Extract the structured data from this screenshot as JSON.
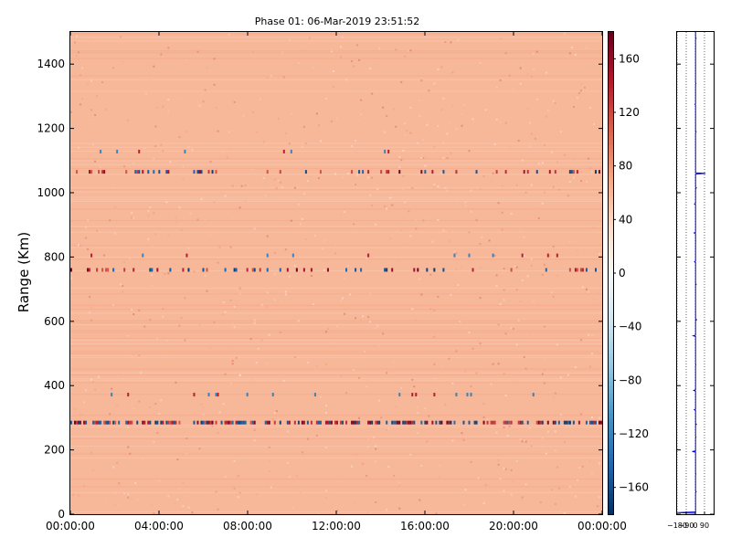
{
  "chart_data": [
    {
      "type": "heatmap",
      "title": "Phase 01: 06-Mar-2019 23:51:52",
      "ylabel": "Range (Km)",
      "xlabel": "",
      "x_ticks": [
        "00:00:00",
        "04:00:00",
        "08:00:00",
        "12:00:00",
        "16:00:00",
        "20:00:00",
        "00:00:00"
      ],
      "y_ticks": [
        0,
        200,
        400,
        600,
        800,
        1000,
        1200,
        1400
      ],
      "xlim_hours": [
        0,
        24
      ],
      "ylim": [
        0,
        1500
      ],
      "colorbar": {
        "colormap": "RdBu_r",
        "range": [
          -180,
          180
        ],
        "ticks": [
          160,
          120,
          80,
          40,
          0,
          -40,
          -80,
          -120,
          -160
        ],
        "labels": [
          "160",
          "120",
          "80",
          "40",
          "0",
          "−40",
          "−80",
          "−120",
          "−160"
        ]
      },
      "background_value": 60,
      "strong_rows": [
        {
          "range_km": 285,
          "style": "dense"
        },
        {
          "range_km": 760,
          "style": "sparse"
        },
        {
          "range_km": 1065,
          "style": "sparse"
        }
      ],
      "weak_rows": [
        372,
        805,
        1128
      ]
    },
    {
      "type": "line",
      "x_ticks": [
        -180,
        -90,
        0,
        90
      ],
      "x_tick_labels": [
        "−180",
        "−90",
        "0",
        "90"
      ],
      "xlim": [
        -180,
        180
      ],
      "ylim": [
        0,
        1500
      ],
      "y_ticks": [
        0,
        200,
        400,
        600,
        800,
        1000,
        1200,
        1400
      ],
      "profile_range_km": [
        5,
        70,
        125,
        195,
        240,
        280,
        325,
        385,
        465,
        555,
        605,
        715,
        785,
        850,
        875,
        965,
        1015,
        1060,
        1190,
        1275,
        1340,
        1460,
        1480
      ],
      "profile_phase_deg": [
        -170,
        8,
        5,
        -30,
        6,
        10,
        -10,
        -15,
        5,
        -20,
        12,
        8,
        -8,
        4,
        -12,
        -8,
        10,
        100,
        8,
        -4,
        6,
        3,
        8
      ],
      "color": "#0000cc"
    }
  ]
}
